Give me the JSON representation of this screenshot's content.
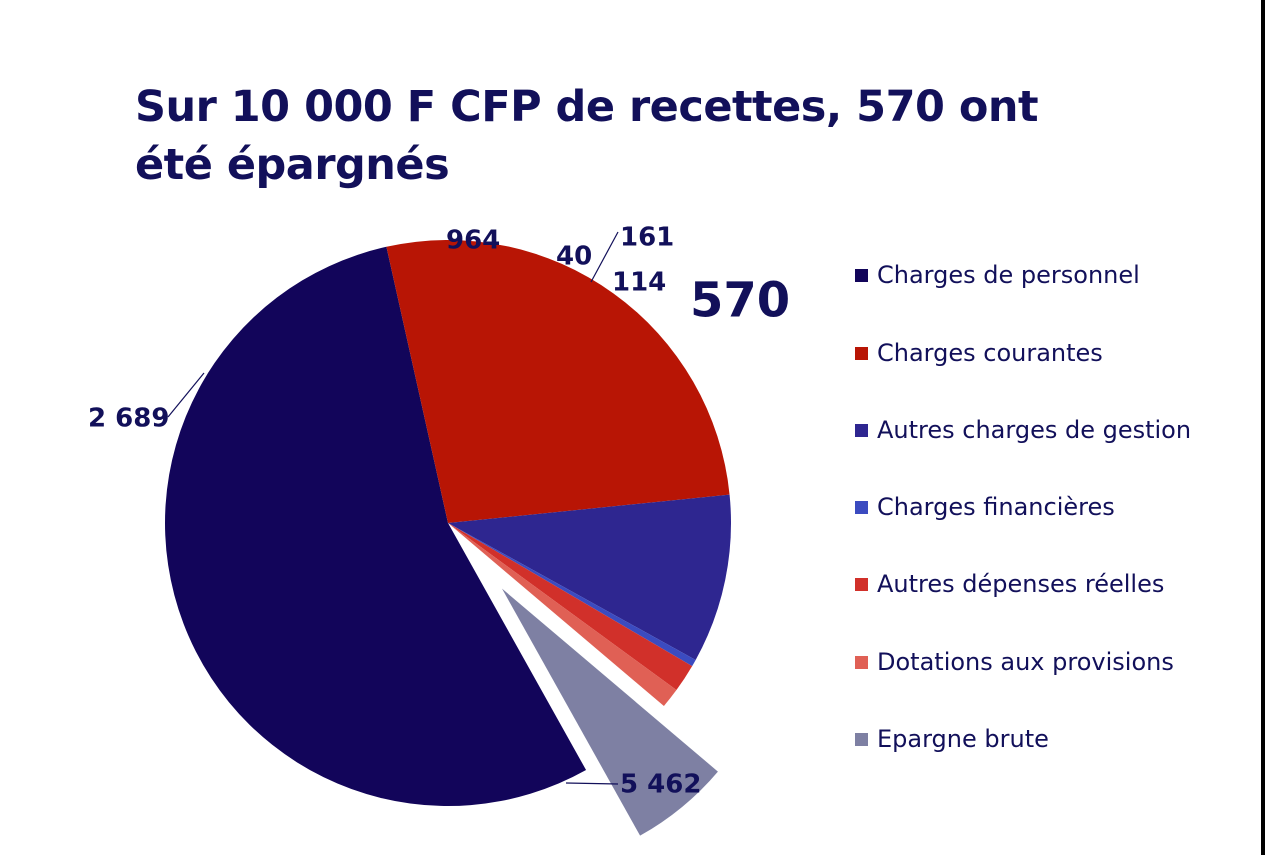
{
  "title": "Sur 10 000 F CFP de recettes, 570 ont été épargnés",
  "chart_data": {
    "type": "pie",
    "total": 10000,
    "slices": [
      {
        "name": "Charges de personnel",
        "value": 5462,
        "label": "5 462",
        "color": "#12055a"
      },
      {
        "name": "Charges courantes",
        "value": 2689,
        "label": "2 689",
        "color": "#b81505"
      },
      {
        "name": "Autres charges de gestion",
        "value": 964,
        "label": "964",
        "color": "#2e2690"
      },
      {
        "name": "Charges financières",
        "value": 40,
        "label": "40",
        "color": "#3b4bc0"
      },
      {
        "name": "Autres dépenses réelles",
        "value": 161,
        "label": "161",
        "color": "#d1302a"
      },
      {
        "name": "Dotations aux provisions",
        "value": 114,
        "label": "114",
        "color": "#e06055"
      },
      {
        "name": "Epargne brute",
        "value": 570,
        "label": "570",
        "color": "#7e80a3",
        "exploded": true
      }
    ],
    "legend_position": "right"
  }
}
